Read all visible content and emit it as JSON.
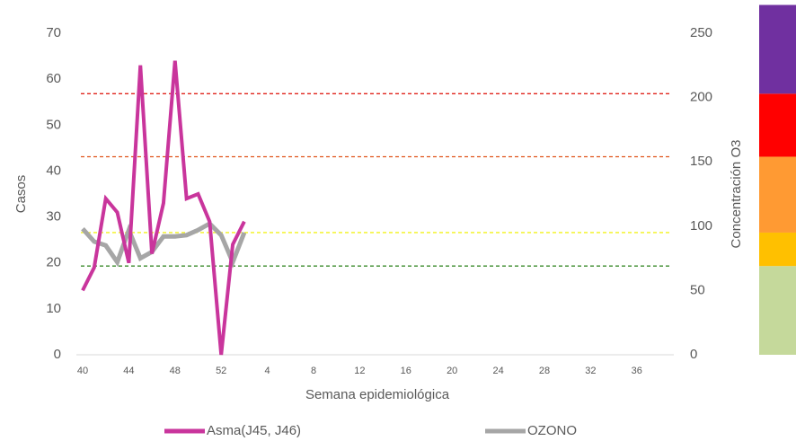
{
  "chart_data": {
    "type": "line",
    "x_label": "Semana epidemiológica",
    "y_label": "Casos",
    "y2_label": "Concentración O3",
    "categories": [
      "40",
      null,
      null,
      null,
      "44",
      null,
      null,
      null,
      "48",
      null,
      null,
      null,
      "52",
      null,
      null,
      null,
      "4",
      null,
      null,
      null,
      "8",
      null,
      null,
      null,
      "12",
      null,
      null,
      null,
      "16",
      null,
      null,
      null,
      "20",
      null,
      null,
      null,
      "24",
      null,
      null,
      null,
      "28",
      null,
      null,
      null,
      "32",
      null,
      null,
      null,
      "36",
      null,
      null,
      null
    ],
    "series": [
      {
        "name": "Asma(J45, J46)",
        "color": "#c9359c",
        "values": [
          14,
          19,
          34,
          31,
          20,
          63,
          22,
          33,
          64,
          34,
          35,
          29,
          0,
          24,
          29,
          null,
          null,
          null,
          null,
          null,
          null,
          null,
          null,
          null,
          null,
          null,
          null,
          null,
          null,
          null,
          null,
          null,
          null,
          null,
          null,
          null,
          null,
          null,
          null,
          null,
          null,
          null,
          null,
          null,
          null,
          null,
          null,
          null,
          null,
          null,
          null,
          null
        ]
      },
      {
        "name": "OZONO",
        "color": "#a6a6a6",
        "axis": "y2",
        "values": [
          98,
          88,
          85,
          72,
          97,
          75,
          80,
          92,
          92,
          93,
          97,
          102,
          93,
          72,
          95,
          null,
          null,
          null,
          null,
          null,
          null,
          null,
          null,
          null,
          null,
          null,
          null,
          null,
          null,
          null,
          null,
          null,
          null,
          null,
          null,
          null,
          null,
          null,
          null,
          null,
          null,
          null,
          null,
          null,
          null,
          null,
          null,
          null,
          null,
          null,
          null,
          null
        ]
      }
    ],
    "ylim": [
      0,
      70
    ],
    "yticks": [
      0,
      10,
      20,
      30,
      40,
      50,
      60,
      70
    ],
    "y2lim": [
      0,
      250
    ],
    "y2ticks": [
      0,
      50,
      100,
      150,
      200,
      250
    ],
    "thresholds": [
      {
        "value": 203,
        "color": "#e0241b"
      },
      {
        "value": 154,
        "color": "#e0541b"
      },
      {
        "value": 95,
        "color": "#f2f21a"
      },
      {
        "value": 69,
        "color": "#3a8a2a"
      }
    ],
    "bands": [
      {
        "from": 0,
        "to": 69,
        "color": "#c5d99b"
      },
      {
        "from": 69,
        "to": 95,
        "color": "#ffc000"
      },
      {
        "from": 95,
        "to": 154,
        "color": "#ff9a33"
      },
      {
        "from": 154,
        "to": 203,
        "color": "#ff0000"
      },
      {
        "from": 203,
        "to": 272,
        "color": "#7030a0"
      }
    ]
  }
}
